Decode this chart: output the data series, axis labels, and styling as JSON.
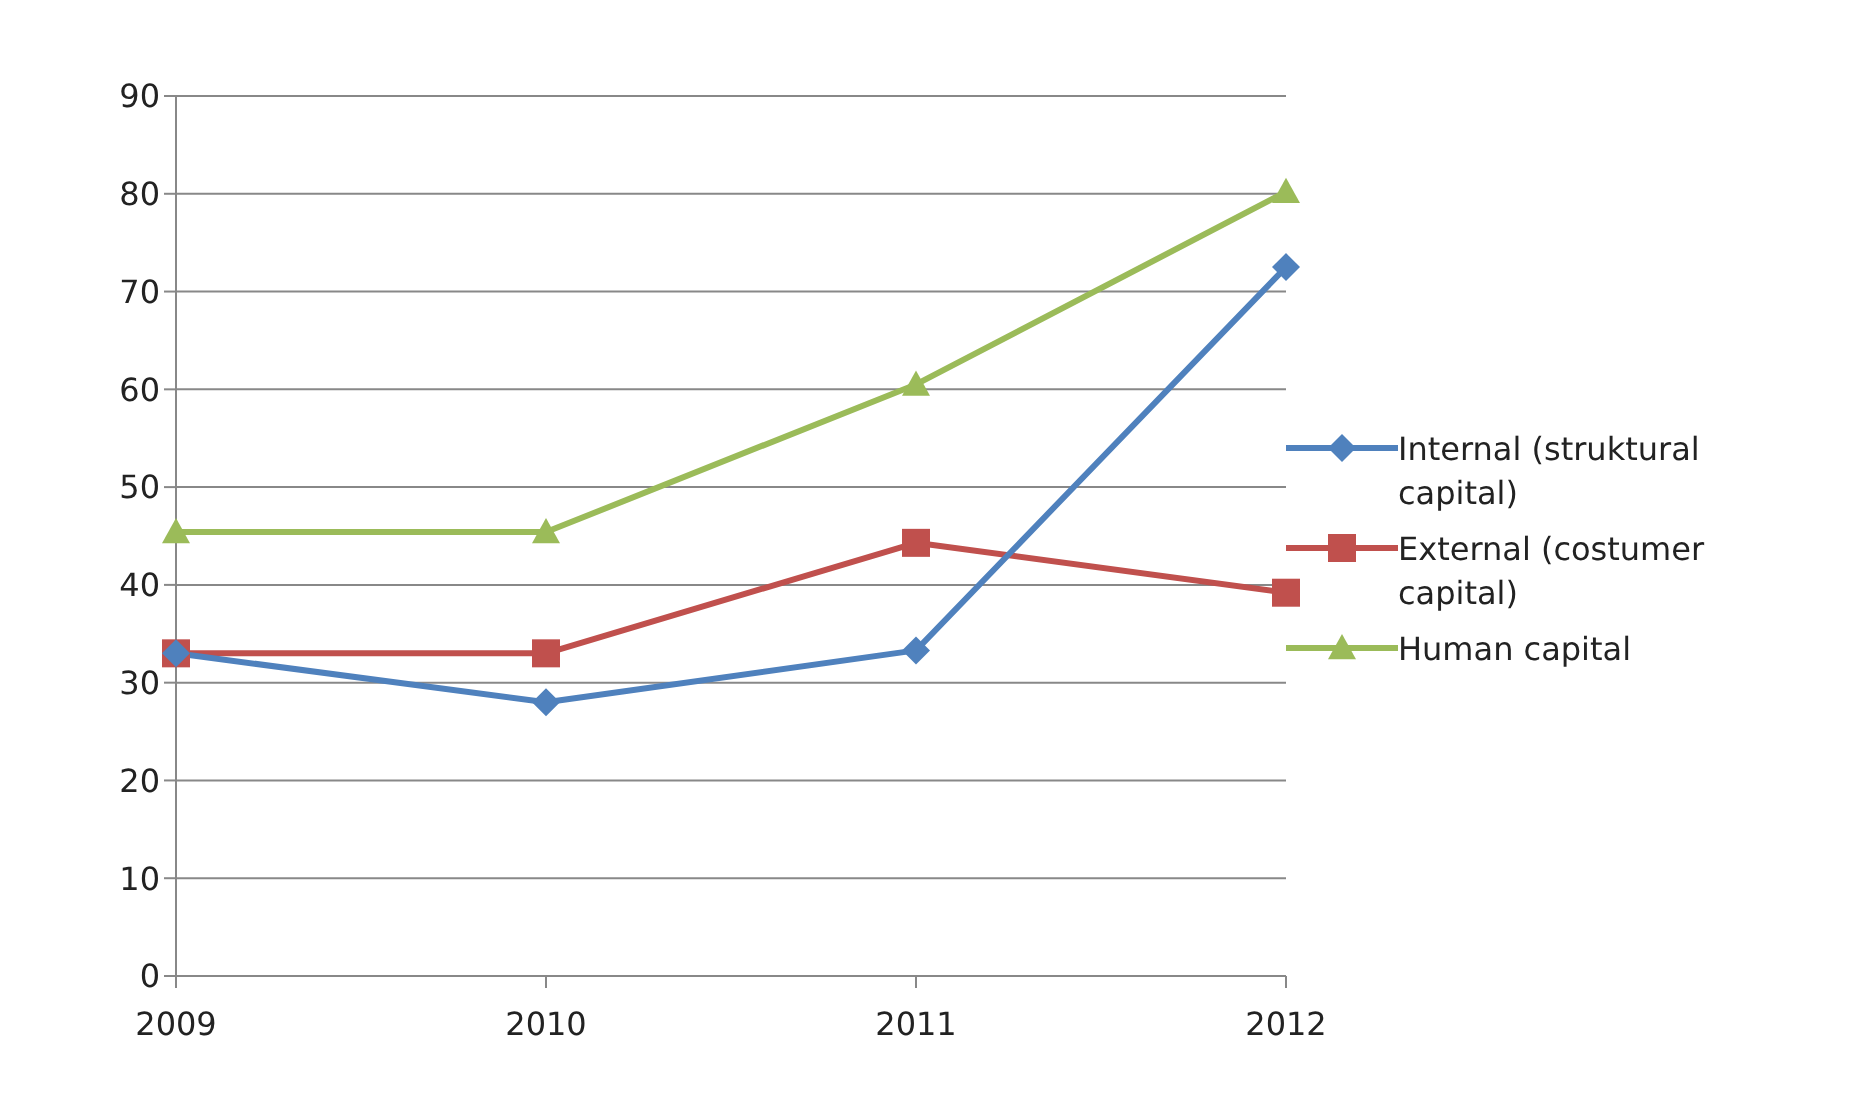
{
  "chart_data": {
    "type": "line",
    "categories": [
      "2009",
      "2010",
      "2011",
      "2012"
    ],
    "series": [
      {
        "name": "Internal (struktural capital)",
        "color": "#4f81bd",
        "marker": "diamond",
        "values": [
          33,
          28,
          33.3,
          72.5
        ]
      },
      {
        "name": "External (costumer capital)",
        "color": "#c0504d",
        "marker": "square",
        "values": [
          33,
          33,
          44.3,
          39.2
        ]
      },
      {
        "name": "Human capital",
        "color": "#9bbb59",
        "marker": "triangle",
        "values": [
          45.4,
          45.4,
          60.5,
          80.2
        ]
      }
    ],
    "ylim": [
      0,
      90
    ],
    "yticks": [
      0,
      10,
      20,
      30,
      40,
      50,
      60,
      70,
      80,
      90
    ],
    "grid": "y",
    "legend": "right"
  }
}
